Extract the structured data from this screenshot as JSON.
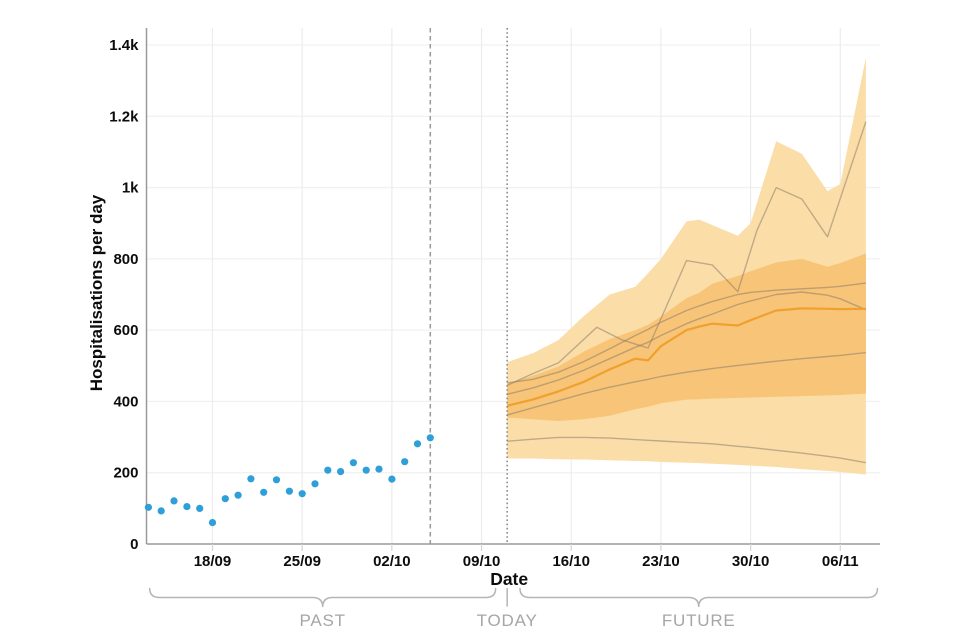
{
  "chart_data": {
    "type": "mixed-scatter-line-area",
    "description": "Observed daily hospitalisations (blue dots) followed by model projections: 90% and 50% interval bands, median line and individual model trajectories",
    "xlabel": "Date",
    "ylabel": "Hospitalisations per day",
    "ylim": [
      0,
      1400
    ],
    "xlim_days": [
      -28.15,
      29.1
    ],
    "grid": true,
    "y_ticks": [
      {
        "value": 0,
        "label": "0"
      },
      {
        "value": 200,
        "label": "200"
      },
      {
        "value": 400,
        "label": "400"
      },
      {
        "value": 600,
        "label": "600"
      },
      {
        "value": 800,
        "label": "800"
      },
      {
        "value": 1000,
        "label": "1k"
      },
      {
        "value": 1200,
        "label": "1.2k"
      },
      {
        "value": 1400,
        "label": "1.4k"
      }
    ],
    "x_ticks": [
      {
        "day": -23,
        "label": "18/09"
      },
      {
        "day": -16,
        "label": "25/09"
      },
      {
        "day": -9,
        "label": "02/10"
      },
      {
        "day": -2,
        "label": "09/10"
      },
      {
        "day": 5,
        "label": "16/10"
      },
      {
        "day": 12,
        "label": "23/10"
      },
      {
        "day": 19,
        "label": "30/10"
      },
      {
        "day": 26,
        "label": "06/11"
      }
    ],
    "observed": {
      "name": "observed-hospitalisations",
      "start_day": -28,
      "step_days": 1,
      "values": [
        103,
        93,
        121,
        105,
        100,
        60,
        127,
        137,
        183,
        145,
        180,
        148,
        141,
        169,
        207,
        203,
        228,
        207,
        210,
        182,
        231,
        281,
        298
      ]
    },
    "last_observed_day": -6,
    "today_day": 0,
    "projection": {
      "days": [
        0,
        2,
        4,
        6,
        8,
        10,
        11,
        12,
        14,
        15,
        16,
        18,
        19,
        21,
        23,
        25,
        26,
        28
      ],
      "outer_top": [
        510,
        535,
        572,
        640,
        700,
        722,
        760,
        800,
        905,
        910,
        895,
        865,
        900,
        1130,
        1095,
        990,
        1010,
        1365
      ],
      "outer_bottom": [
        240,
        240,
        238,
        237,
        235,
        233,
        232,
        230,
        228,
        227,
        225,
        222,
        220,
        216,
        210,
        205,
        202,
        195
      ],
      "inner_top": [
        450,
        472,
        498,
        540,
        575,
        600,
        615,
        638,
        690,
        705,
        730,
        752,
        765,
        790,
        800,
        778,
        788,
        815
      ],
      "inner_bottom": [
        355,
        350,
        345,
        350,
        360,
        378,
        385,
        395,
        405,
        406,
        408,
        410,
        411,
        413,
        415,
        417,
        418,
        422
      ],
      "median": [
        388,
        405,
        428,
        455,
        490,
        520,
        515,
        555,
        600,
        610,
        618,
        613,
        628,
        655,
        661,
        660,
        659,
        660
      ]
    },
    "trajectories": [
      {
        "name": "model-trajectory-1",
        "days": [
          0,
          2,
          4,
          7,
          9,
          11,
          14,
          16,
          18,
          19.5,
          21,
          23,
          25,
          28
        ],
        "values": [
          445,
          478,
          508,
          608,
          572,
          550,
          795,
          783,
          708,
          880,
          1000,
          968,
          862,
          1185
        ]
      },
      {
        "name": "model-trajectory-2",
        "days": [
          0,
          2,
          4,
          6,
          8,
          10,
          11,
          12,
          14,
          15,
          16,
          18,
          19,
          21,
          23,
          25,
          26,
          28
        ],
        "values": [
          452,
          462,
          482,
          512,
          548,
          585,
          602,
          622,
          655,
          668,
          680,
          700,
          706,
          712,
          716,
          720,
          723,
          732
        ]
      },
      {
        "name": "model-trajectory-3",
        "days": [
          0,
          2,
          4,
          6,
          8,
          10,
          11,
          12,
          14,
          15,
          16,
          18,
          19,
          21,
          23,
          25,
          26,
          28
        ],
        "values": [
          420,
          438,
          460,
          488,
          520,
          552,
          566,
          585,
          618,
          632,
          645,
          672,
          682,
          700,
          707,
          698,
          688,
          657
        ]
      },
      {
        "name": "model-trajectory-4",
        "days": [
          0,
          2,
          4,
          6,
          8,
          10,
          11,
          12,
          14,
          15,
          16,
          18,
          19,
          21,
          23,
          25,
          26,
          28
        ],
        "values": [
          362,
          382,
          402,
          422,
          440,
          455,
          462,
          470,
          482,
          487,
          492,
          501,
          505,
          513,
          520,
          526,
          529,
          537
        ]
      },
      {
        "name": "model-trajectory-5",
        "days": [
          0,
          2,
          4,
          6,
          8,
          10,
          11,
          12,
          14,
          15,
          16,
          18,
          19,
          21,
          23,
          25,
          26,
          28
        ],
        "values": [
          288,
          294,
          299,
          299,
          297,
          293,
          291,
          289,
          285,
          283,
          281,
          274,
          271,
          263,
          255,
          246,
          241,
          228
        ]
      }
    ],
    "annotations": {
      "past": {
        "label": "PAST",
        "from_day": -27.9,
        "to_day": -0.9
      },
      "today": {
        "label": "TODAY",
        "day": 0
      },
      "future": {
        "label": "FUTURE",
        "from_day": 1.0,
        "to_day": 28.9
      }
    },
    "colors": {
      "observed_dot": "#2e9fd8",
      "outer_band": "#fbdda8",
      "inner_band": "#f8c478",
      "median_line": "#f0a02c",
      "trajectory": "rgba(142,128,106,0.55)",
      "grid_h": "#f1f1f1",
      "grid_v": "#ececec",
      "axis": "#9a9a9a",
      "x_tick": "#d5d5d5",
      "dashed_line": "#9a9a9a",
      "dotted_line": "#8a8a8a",
      "text_dark": "#0b0c0c",
      "text_gray": "#a6a6a6",
      "bracket": "#b5b5b5"
    }
  }
}
